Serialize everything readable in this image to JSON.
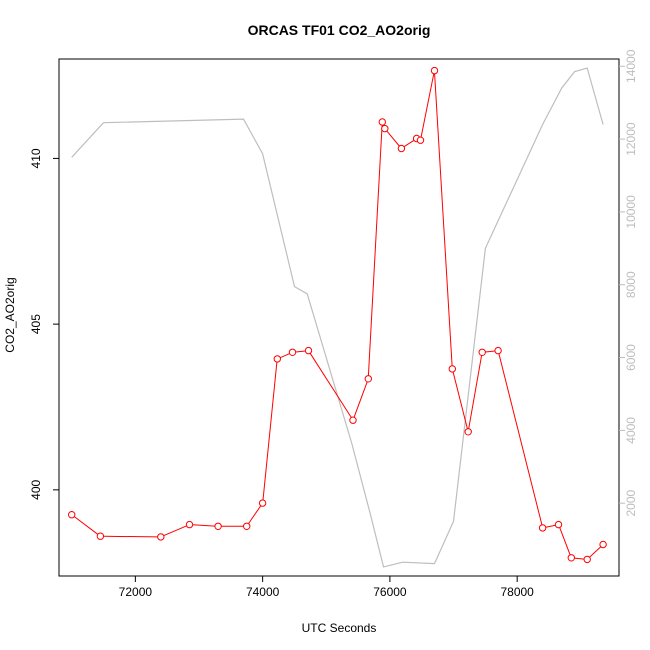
{
  "chart_data": {
    "type": "line",
    "title": "ORCAS TF01 CO2_AO2orig",
    "xlabel": "UTC Seconds",
    "ylabel": "CO2_AO2orig",
    "xlim": [
      70800,
      79600
    ],
    "ylim": [
      397.4,
      413.0
    ],
    "y2lim": [
      0,
      14200
    ],
    "x_ticks": [
      72000,
      74000,
      76000,
      78000
    ],
    "y_ticks": [
      400,
      405,
      410
    ],
    "y2_ticks": [
      2000,
      4000,
      6000,
      8000,
      10000,
      12000,
      14000
    ],
    "grid": false,
    "colors": {
      "primary": "#ff0000",
      "secondary": "#bebebe"
    },
    "series": [
      {
        "axis": "left",
        "style": "line+circle",
        "color": "#ff0000",
        "x": [
          71000,
          71450,
          72400,
          72850,
          73300,
          73750,
          74000,
          74230,
          74470,
          74720,
          75420,
          75660,
          75880,
          75920,
          76180,
          76420,
          76480,
          76700,
          76980,
          77230,
          77450,
          77700,
          78400,
          78650,
          78850,
          79100,
          79350
        ],
        "values": [
          399.25,
          398.6,
          398.58,
          398.95,
          398.9,
          398.9,
          399.6,
          403.95,
          404.15,
          404.2,
          402.1,
          403.35,
          411.1,
          410.9,
          410.3,
          410.6,
          410.55,
          412.65,
          403.65,
          401.75,
          404.15,
          404.2,
          398.85,
          398.95,
          397.95,
          397.9,
          398.35
        ]
      },
      {
        "axis": "right",
        "style": "line",
        "color": "#bebebe",
        "x": [
          71000,
          71500,
          73700,
          74000,
          74500,
          74700,
          75400,
          75700,
          75900,
          76200,
          76700,
          77000,
          77500,
          78400,
          78700,
          78900,
          79100,
          79350
        ],
        "values": [
          11500,
          12450,
          12550,
          11600,
          7950,
          7750,
          3650,
          1650,
          250,
          380,
          340,
          1500,
          9000,
          12400,
          13400,
          13850,
          13950,
          12400
        ]
      }
    ]
  }
}
